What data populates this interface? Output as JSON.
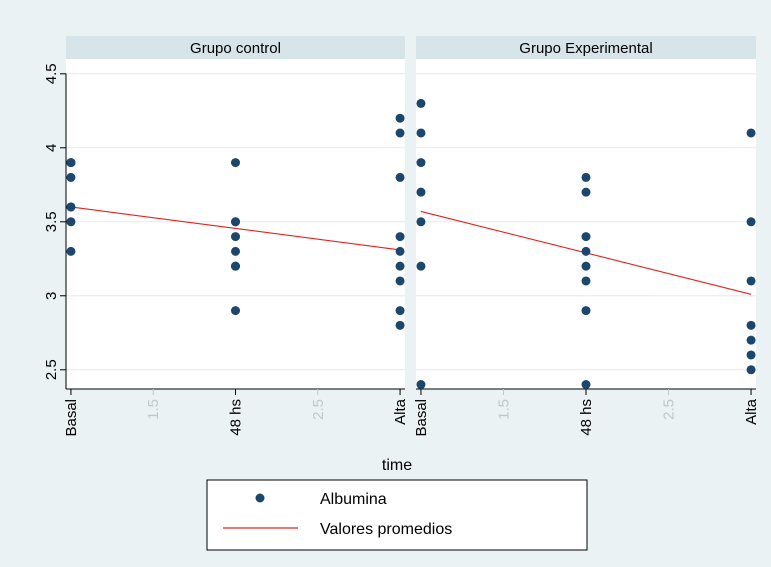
{
  "chart_data": {
    "type": "scatter",
    "xlabel": "time",
    "x_ticks": [
      {
        "value": 1,
        "label": "Basal",
        "color": "#000000"
      },
      {
        "value": 1.5,
        "label": "1.5",
        "color": "#c0c8cc"
      },
      {
        "value": 2,
        "label": "48 hs",
        "color": "#000000"
      },
      {
        "value": 2.5,
        "label": "2.5",
        "color": "#c0c8cc"
      },
      {
        "value": 3,
        "label": "Alta",
        "color": "#000000"
      }
    ],
    "y_ticks": [
      2.5,
      3,
      3.5,
      4,
      4.5
    ],
    "y_tick_labels": [
      "2.5",
      "3",
      "3.5",
      "4",
      "4.5"
    ],
    "xlim": [
      0.97,
      3.03
    ],
    "ylim": [
      2.37,
      4.6
    ],
    "colors": {
      "points": "#1a476f",
      "line": "#e8201a",
      "panel_header": "#d7e4ea",
      "grid": "#e6ecee"
    },
    "panels": [
      {
        "title": "Grupo control",
        "albumina": [
          [
            1,
            3.9
          ],
          [
            1,
            3.9
          ],
          [
            1,
            3.8
          ],
          [
            1,
            3.6
          ],
          [
            1,
            3.6
          ],
          [
            1,
            3.5
          ],
          [
            1,
            3.3
          ],
          [
            2,
            3.9
          ],
          [
            2,
            3.5
          ],
          [
            2,
            3.5
          ],
          [
            2,
            3.4
          ],
          [
            2,
            3.3
          ],
          [
            2,
            3.2
          ],
          [
            2,
            3.2
          ],
          [
            2,
            2.9
          ],
          [
            3,
            4.2
          ],
          [
            3,
            4.1
          ],
          [
            3,
            3.8
          ],
          [
            3,
            3.4
          ],
          [
            3,
            3.3
          ],
          [
            3,
            3.2
          ],
          [
            3,
            3.1
          ],
          [
            3,
            2.9
          ],
          [
            3,
            2.8
          ]
        ],
        "valores_promedios": [
          [
            1,
            3.6
          ],
          [
            3,
            3.31
          ]
        ]
      },
      {
        "title": "Grupo Experimental",
        "albumina": [
          [
            1,
            4.3
          ],
          [
            1,
            4.1
          ],
          [
            1,
            3.9
          ],
          [
            1,
            3.7
          ],
          [
            1,
            3.5
          ],
          [
            1,
            3.2
          ],
          [
            1,
            2.4
          ],
          [
            2,
            3.8
          ],
          [
            2,
            3.7
          ],
          [
            2,
            3.4
          ],
          [
            2,
            3.3
          ],
          [
            2,
            3.2
          ],
          [
            2,
            3.1
          ],
          [
            2,
            2.9
          ],
          [
            2,
            2.4
          ],
          [
            3,
            4.1
          ],
          [
            3,
            3.5
          ],
          [
            3,
            3.1
          ],
          [
            3,
            2.8
          ],
          [
            3,
            2.7
          ],
          [
            3,
            2.6
          ],
          [
            3,
            2.5
          ]
        ],
        "valores_promedios": [
          [
            1,
            3.57
          ],
          [
            3,
            3.01
          ]
        ]
      }
    ],
    "legend": {
      "position": "bottom",
      "entries": [
        {
          "label": "Albumina",
          "marker": "point"
        },
        {
          "label": "Valores promedios",
          "marker": "line"
        }
      ]
    }
  }
}
